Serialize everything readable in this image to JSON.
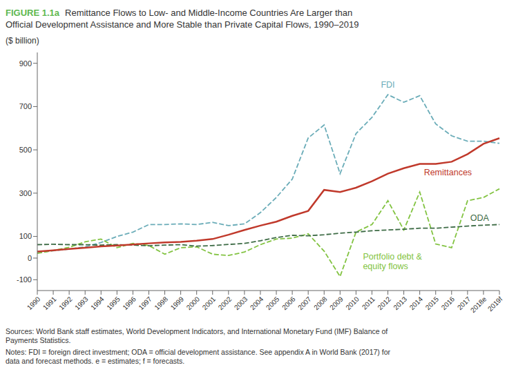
{
  "chart_data": {
    "type": "line",
    "title": "FIGURE 1.1a",
    "subtitle": "Remittance Flows to Low- and Middle-Income Countries Are Larger than\nOfficial Development Assistance and More Stable than Private Capital Flows, 1990–2019",
    "ylabel": "($ billion)",
    "categories": [
      "1990",
      "1991",
      "1992",
      "1993",
      "1994",
      "1995",
      "1996",
      "1997",
      "1998",
      "1999",
      "2000",
      "2001",
      "2002",
      "2003",
      "2004",
      "2005",
      "2006",
      "2007",
      "2008",
      "2009",
      "2010",
      "2011",
      "2012",
      "2013",
      "2014",
      "2015",
      "2016",
      "2017",
      "2018e",
      "2019f"
    ],
    "series": [
      {
        "name": "FDI",
        "color": "#6aacb8",
        "line_style": "dashed",
        "values": [
          24,
          34,
          42,
          52,
          72,
          100,
          120,
          155,
          155,
          158,
          155,
          165,
          150,
          158,
          210,
          280,
          365,
          555,
          615,
          390,
          575,
          650,
          755,
          720,
          750,
          620,
          565,
          540,
          540,
          530
        ]
      },
      {
        "name": "Portfolio debt &\nequity flows",
        "color": "#82c341",
        "line_style": "dashed",
        "values": [
          22,
          35,
          50,
          75,
          88,
          48,
          68,
          58,
          18,
          48,
          52,
          18,
          12,
          28,
          62,
          88,
          92,
          112,
          32,
          -85,
          120,
          155,
          265,
          130,
          305,
          65,
          48,
          265,
          280,
          320
        ]
      },
      {
        "name": "ODA",
        "color": "#3d6b45",
        "line_style": "dashed",
        "values": [
          62,
          64,
          62,
          62,
          60,
          62,
          60,
          57,
          60,
          62,
          55,
          58,
          63,
          68,
          80,
          95,
          105,
          103,
          108,
          115,
          120,
          126,
          130,
          133,
          138,
          138,
          143,
          148,
          152,
          155
        ]
      },
      {
        "name": "Remittances",
        "color": "#c0392b",
        "line_style": "solid",
        "values": [
          30,
          36,
          42,
          48,
          54,
          58,
          63,
          68,
          72,
          75,
          80,
          88,
          108,
          130,
          150,
          168,
          195,
          218,
          315,
          305,
          325,
          355,
          390,
          415,
          435,
          435,
          445,
          480,
          528,
          554
        ]
      }
    ],
    "ylim": [
      -150,
      950
    ],
    "yticks": [
      -100,
      0,
      100,
      300,
      500,
      700,
      900
    ],
    "grid": false,
    "annotations": [
      "Sources: World Bank staff estimates, World Development Indicators, and International Monetary Fund (IMF) Balance of\nPayments Statistics.",
      "Notes: FDI = foreign direct investment; ODA = official development assistance. See appendix A in World Bank (2017) for\ndata and forecast methods. e = estimates; f = forecasts."
    ]
  }
}
